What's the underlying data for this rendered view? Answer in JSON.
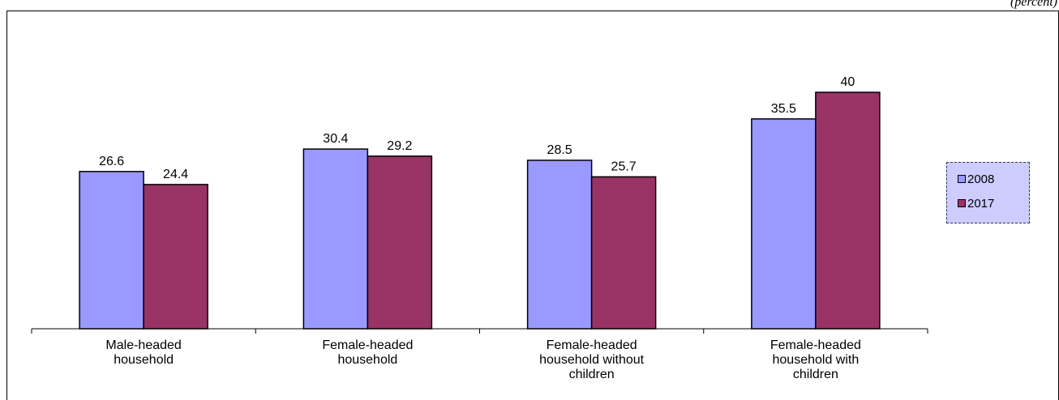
{
  "unit_note": "(percent)",
  "colors": {
    "2008": "#9999ff",
    "2017": "#993366"
  },
  "chart_data": {
    "type": "bar",
    "categories": [
      [
        "Male-headed",
        "household"
      ],
      [
        "Female-headed",
        "household"
      ],
      [
        "Female-headed",
        "household without",
        "children"
      ],
      [
        "Female-headed",
        "household with",
        "children"
      ]
    ],
    "series": [
      {
        "name": "2008",
        "values": [
          26.6,
          30.4,
          28.5,
          35.5
        ]
      },
      {
        "name": "2017",
        "values": [
          24.4,
          29.2,
          25.7,
          40
        ]
      }
    ],
    "value_labels": [
      [
        "26.6",
        "30.4",
        "28.5",
        "35.5"
      ],
      [
        "24.4",
        "29.2",
        "25.7",
        "40"
      ]
    ],
    "ylim": [
      0,
      40
    ],
    "grid": false,
    "legend_position": "right"
  }
}
